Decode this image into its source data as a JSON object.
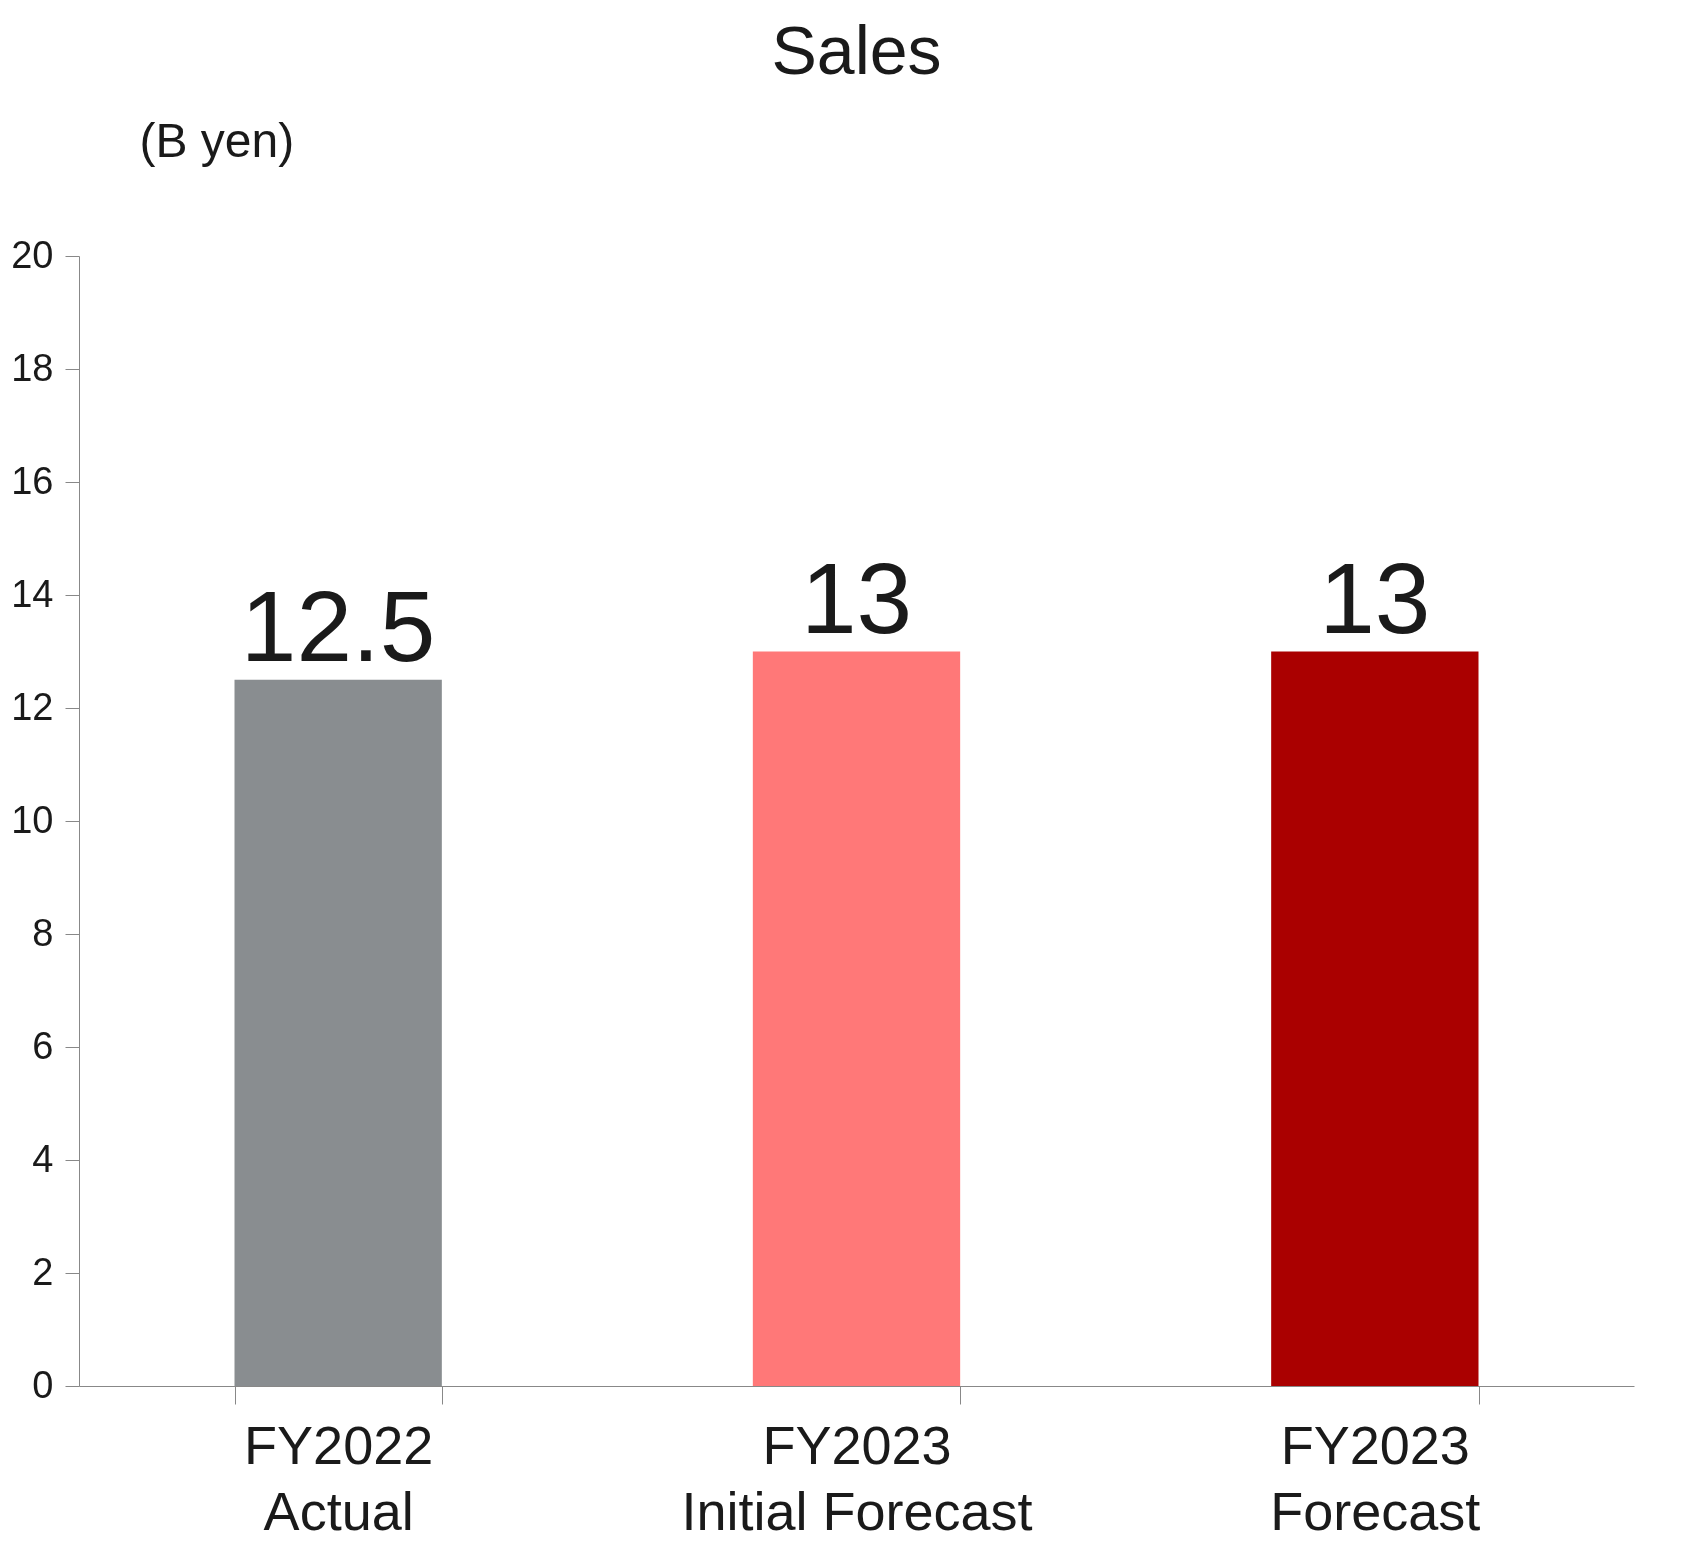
{
  "chart_data": {
    "type": "bar",
    "title": "Sales",
    "ylabel": "(B yen)",
    "categories": [
      "FY2022\nActual",
      "FY2023\nInitial Forecast",
      "FY2023\nForecast"
    ],
    "values": [
      12.5,
      13,
      13
    ],
    "colors": [
      "#898d90",
      "#ff7878",
      "#aa0000"
    ],
    "ylim": [
      0,
      20
    ],
    "yticks": [
      0,
      2,
      4,
      6,
      8,
      10,
      12,
      14,
      16,
      18,
      20
    ],
    "data_labels": true,
    "grid": false,
    "legend": false
  }
}
